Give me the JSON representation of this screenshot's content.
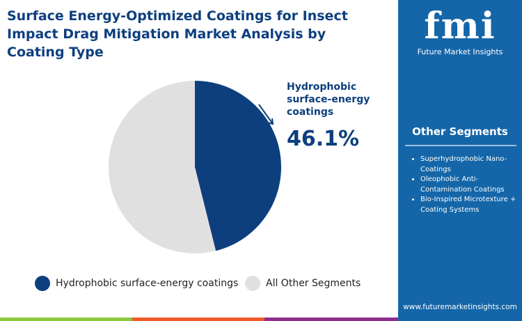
{
  "title": "Surface Energy-Optimized Coatings for Insect Impact Drag Mitigation Market Analysis by Coating Type",
  "chart_data": {
    "type": "pie",
    "categories": [
      "Hydrophobic surface-energy coatings",
      "All Other Segments"
    ],
    "values": [
      46.1,
      53.9
    ],
    "colors": [
      "#0d3f7e",
      "#e0e0e0"
    ],
    "callout": {
      "label": "Hydrophobic surface-energy coatings",
      "value": "46.1%"
    },
    "legend_position": "bottom"
  },
  "callout": {
    "line1": "Hydrophobic",
    "line2": "surface-energy",
    "line3": "coatings",
    "value": "46.1%"
  },
  "legend": [
    "Hydrophobic surface-energy coatings",
    "All Other Segments"
  ],
  "panel": {
    "logo": "fmi",
    "logo_sub": "Future Market Insights",
    "segments_title": "Other Segments",
    "segments": [
      "Superhydrophobic Nano-Coatings",
      "Oleophobic Anti-Contamination Coatings",
      "Bio-Inspired Microtexture + Coating Systems"
    ],
    "url": "www.futuremarketinsights.com"
  },
  "colors": {
    "brand": "#0d3f7e",
    "panel": "#1466a8",
    "bar": [
      "#8dc63f",
      "#f15a29",
      "#8e2d8e"
    ]
  }
}
